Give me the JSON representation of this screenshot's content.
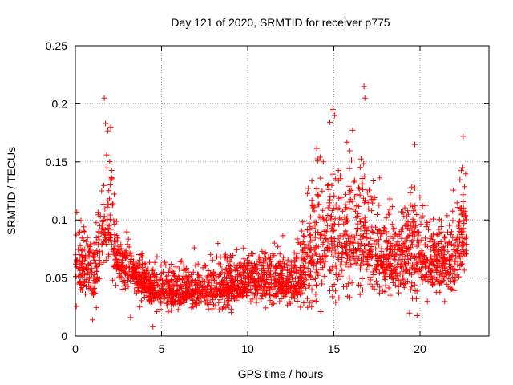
{
  "chart_data": {
    "type": "scatter",
    "title": "Day 121 of 2020, SRMTID for receiver p775",
    "xlabel": "GPS time / hours",
    "ylabel": "SRMTID / TECUs",
    "xlim": [
      0,
      24
    ],
    "ylim": [
      0,
      0.25
    ],
    "x_ticks": [
      0,
      5,
      10,
      15,
      20
    ],
    "x_tick_labels": [
      "0",
      "5",
      "10",
      "15",
      "20"
    ],
    "y_ticks": [
      0,
      0.05,
      0.1,
      0.15,
      0.2,
      0.25
    ],
    "y_tick_labels": [
      "0",
      "0.05",
      "0.1",
      "0.15",
      "0.2",
      "0.25"
    ],
    "grid": true,
    "marker": "+",
    "series_color": "#ff0000",
    "x_range_of_data": [
      0,
      22.7
    ],
    "profile": {
      "x": [
        0,
        0.5,
        1,
        1.5,
        1.8,
        2.1,
        2.3,
        2.7,
        3.5,
        4.5,
        5.5,
        6.5,
        7.5,
        8.5,
        9.5,
        10.5,
        11.5,
        12.5,
        13,
        13.5,
        14,
        14.5,
        15,
        15.5,
        16,
        16.5,
        17,
        17.5,
        18,
        18.5,
        19,
        19.5,
        20,
        20.5,
        21,
        21.5,
        22,
        22.3,
        22.7
      ],
      "mean": [
        0.055,
        0.06,
        0.055,
        0.075,
        0.1,
        0.09,
        0.075,
        0.06,
        0.05,
        0.04,
        0.038,
        0.038,
        0.04,
        0.042,
        0.045,
        0.048,
        0.045,
        0.042,
        0.05,
        0.065,
        0.075,
        0.085,
        0.085,
        0.08,
        0.09,
        0.085,
        0.075,
        0.07,
        0.065,
        0.062,
        0.065,
        0.07,
        0.07,
        0.065,
        0.06,
        0.058,
        0.065,
        0.08,
        0.085
      ],
      "spread": [
        0.035,
        0.045,
        0.035,
        0.06,
        0.09,
        0.07,
        0.04,
        0.03,
        0.025,
        0.025,
        0.025,
        0.025,
        0.025,
        0.03,
        0.025,
        0.028,
        0.028,
        0.025,
        0.04,
        0.06,
        0.08,
        0.085,
        0.09,
        0.085,
        0.09,
        0.08,
        0.06,
        0.05,
        0.045,
        0.045,
        0.05,
        0.06,
        0.05,
        0.045,
        0.04,
        0.04,
        0.05,
        0.06,
        0.055
      ]
    },
    "highlight_points": [
      {
        "x": 1.68,
        "y": 0.205
      },
      {
        "x": 1.75,
        "y": 0.183
      },
      {
        "x": 2.05,
        "y": 0.18
      },
      {
        "x": 14.95,
        "y": 0.195
      },
      {
        "x": 15.05,
        "y": 0.19
      },
      {
        "x": 16.75,
        "y": 0.215
      },
      {
        "x": 16.8,
        "y": 0.205
      },
      {
        "x": 19.7,
        "y": 0.165
      },
      {
        "x": 22.5,
        "y": 0.172
      },
      {
        "x": 22.45,
        "y": 0.145
      },
      {
        "x": 4.5,
        "y": 0.008
      },
      {
        "x": 1.0,
        "y": 0.014
      },
      {
        "x": 3.2,
        "y": 0.016
      }
    ],
    "point_count": 2600
  }
}
